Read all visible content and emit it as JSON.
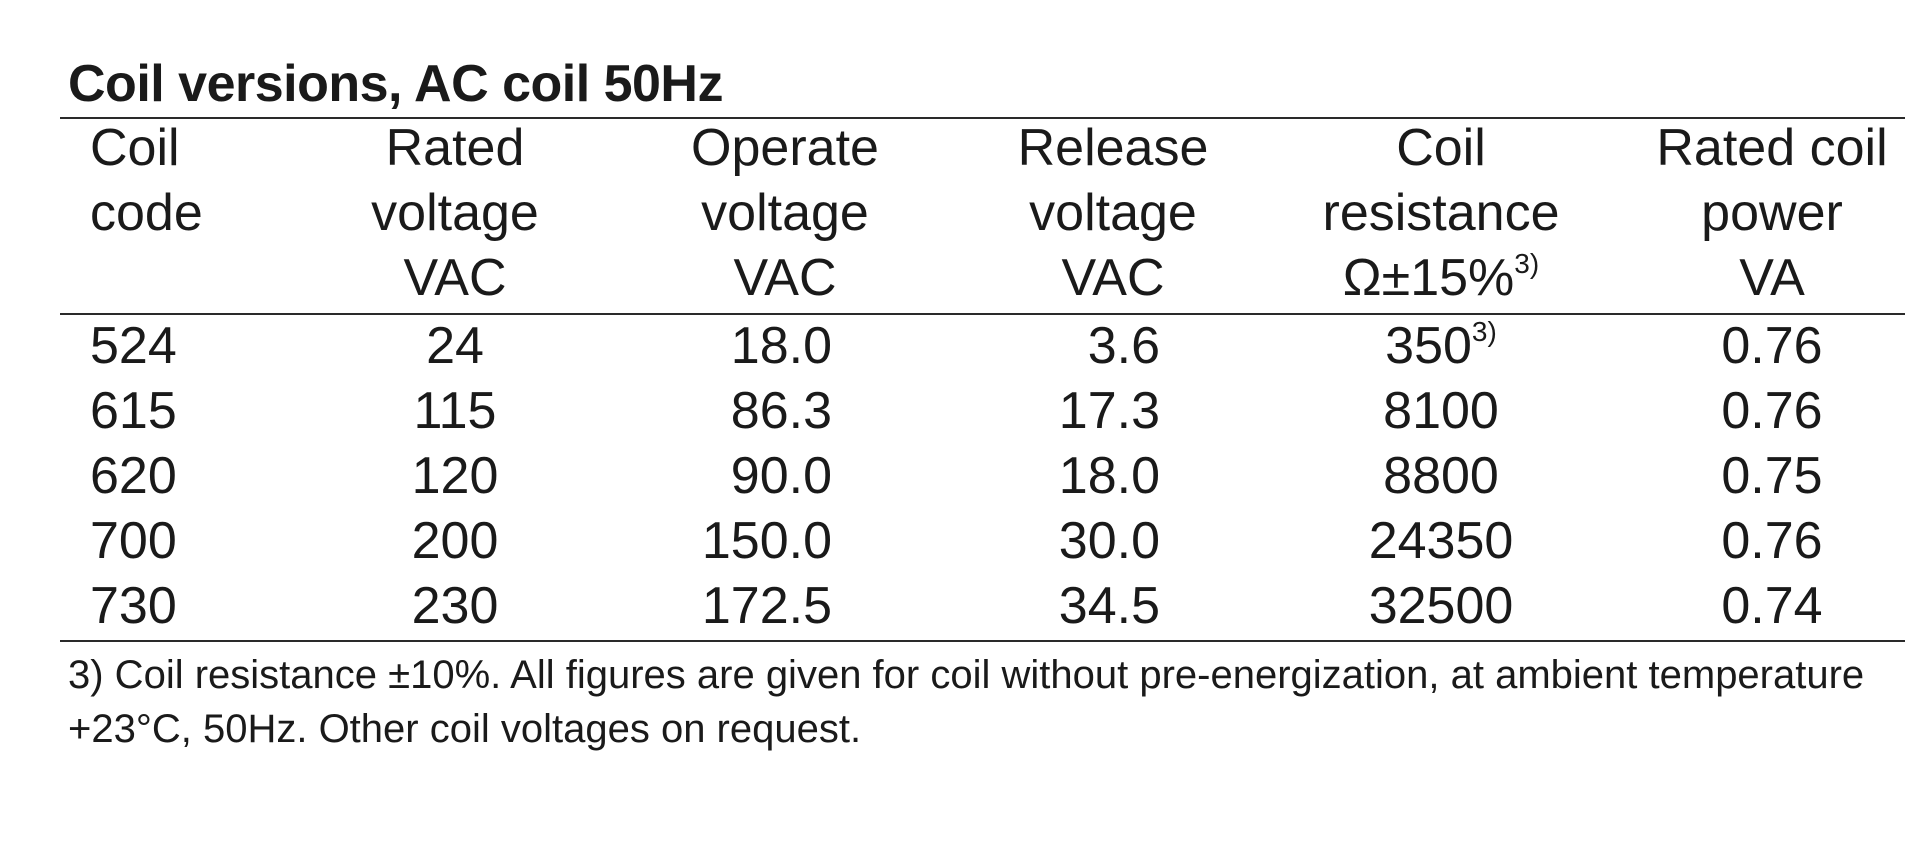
{
  "title": "Coil versions, AC coil 50Hz",
  "headers": [
    [
      "Coil",
      "code",
      ""
    ],
    [
      "Rated",
      "voltage",
      "VAC"
    ],
    [
      "Operate",
      "voltage",
      "VAC"
    ],
    [
      "Release",
      "voltage",
      "VAC"
    ],
    [
      "Coil",
      "resistance",
      "Ω±15%"
    ],
    [
      "Rated coil",
      "power",
      "VA"
    ]
  ],
  "header_sup": "3)",
  "rows": [
    {
      "code": "524",
      "rated": "24",
      "operate": "18.0",
      "release": "3.6",
      "resistance": "350",
      "resistance_sup": "3)",
      "power": "0.76"
    },
    {
      "code": "615",
      "rated": "115",
      "operate": "86.3",
      "release": "17.3",
      "resistance": "8100",
      "resistance_sup": "",
      "power": "0.76"
    },
    {
      "code": "620",
      "rated": "120",
      "operate": "90.0",
      "release": "18.0",
      "resistance": "8800",
      "resistance_sup": "",
      "power": "0.75"
    },
    {
      "code": "700",
      "rated": "200",
      "operate": "150.0",
      "release": "30.0",
      "resistance": "24350",
      "resistance_sup": "",
      "power": "0.76"
    },
    {
      "code": "730",
      "rated": "230",
      "operate": "172.5",
      "release": "34.5",
      "resistance": "32500",
      "resistance_sup": "",
      "power": "0.74"
    }
  ],
  "footnote": "3) Coil resistance ±10%. All figures are given for coil without pre-energization, at ambient temperature +23°C, 50Hz. Other coil voltages on request."
}
